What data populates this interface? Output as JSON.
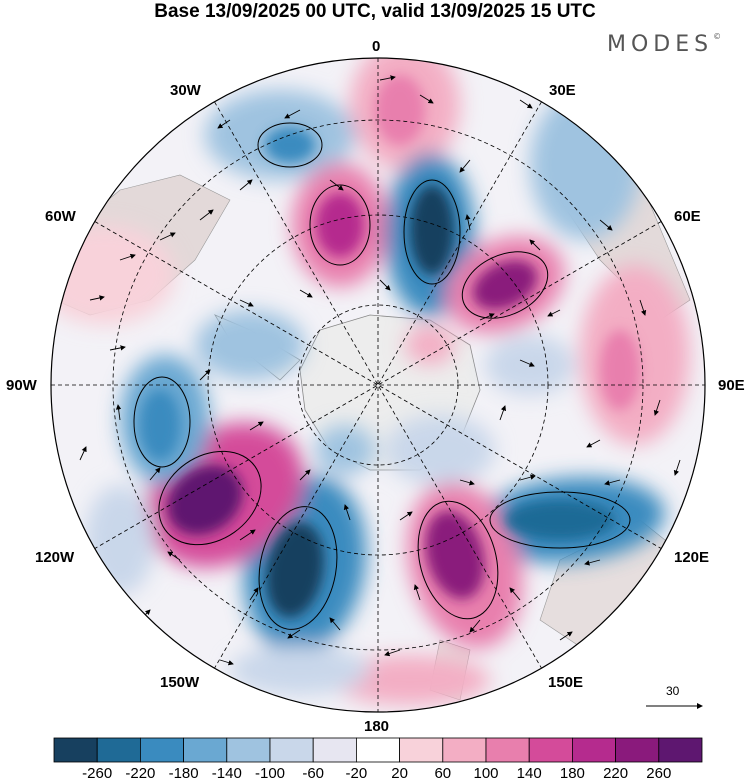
{
  "title": "Base 13/09/2025 00 UTC, valid 13/09/2025 15 UTC",
  "brand": "MODES",
  "brand_mark": "©",
  "map": {
    "projection": "south-polar-stereographic",
    "longitude_labels": {
      "top": "0",
      "top_right": "30E",
      "upper_right": "60E",
      "right": "90E",
      "lower_right": "120E",
      "bottom_right": "150E",
      "bottom": "180",
      "bottom_left": "150W",
      "lower_left": "120W",
      "left": "90W",
      "upper_left": "60W",
      "top_left": "30W"
    },
    "wind_reference_label": "30"
  },
  "colorbar": {
    "ticks": [
      "-260",
      "-220",
      "-180",
      "-140",
      "-100",
      "-60",
      "-20",
      "20",
      "60",
      "100",
      "140",
      "180",
      "220",
      "260"
    ],
    "colors": [
      "#17405f",
      "#1f6a96",
      "#3a8bbf",
      "#6aa8d2",
      "#9fc3e0",
      "#c9d7ea",
      "#e7e6f1",
      "#ffffff",
      "#f8d2da",
      "#f3aec4",
      "#e87fad",
      "#d44b9a",
      "#b52b8e",
      "#8a1a7c",
      "#5e1770"
    ]
  },
  "colors": {
    "land": "#e2dddd",
    "antarctica": "#eeeeee",
    "grid": "#000000"
  }
}
